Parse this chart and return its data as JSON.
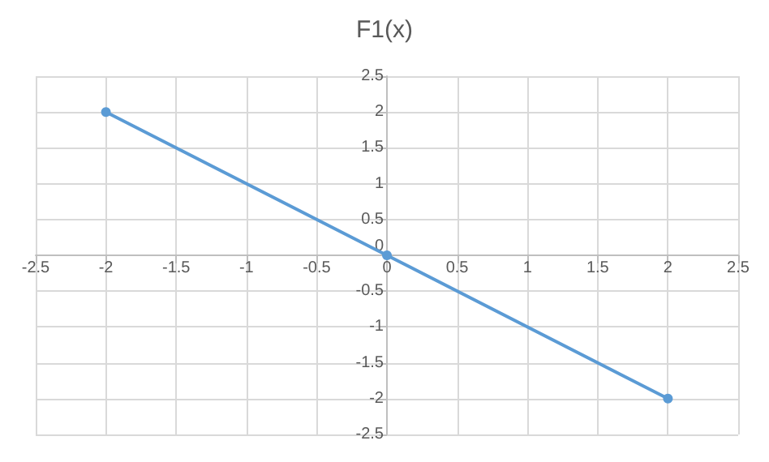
{
  "chart_data": {
    "type": "line",
    "title": "F1(x)",
    "x": [
      -2,
      0,
      2
    ],
    "series": [
      {
        "color": "#5b9bd5",
        "values": [
          2,
          0,
          -2
        ]
      }
    ],
    "xlim": [
      -2.5,
      2.5
    ],
    "xticks": [
      -2.5,
      -2,
      -1.5,
      -1,
      -0.5,
      0,
      0.5,
      1,
      1.5,
      2,
      2.5
    ],
    "ylim": [
      -2.5,
      2.5
    ],
    "yticks": [
      -2.5,
      -2,
      -1.5,
      -1,
      -0.5,
      0,
      0.5,
      1,
      1.5,
      2,
      2.5
    ],
    "grid": true,
    "marker": "circle",
    "line_style": "solid"
  }
}
